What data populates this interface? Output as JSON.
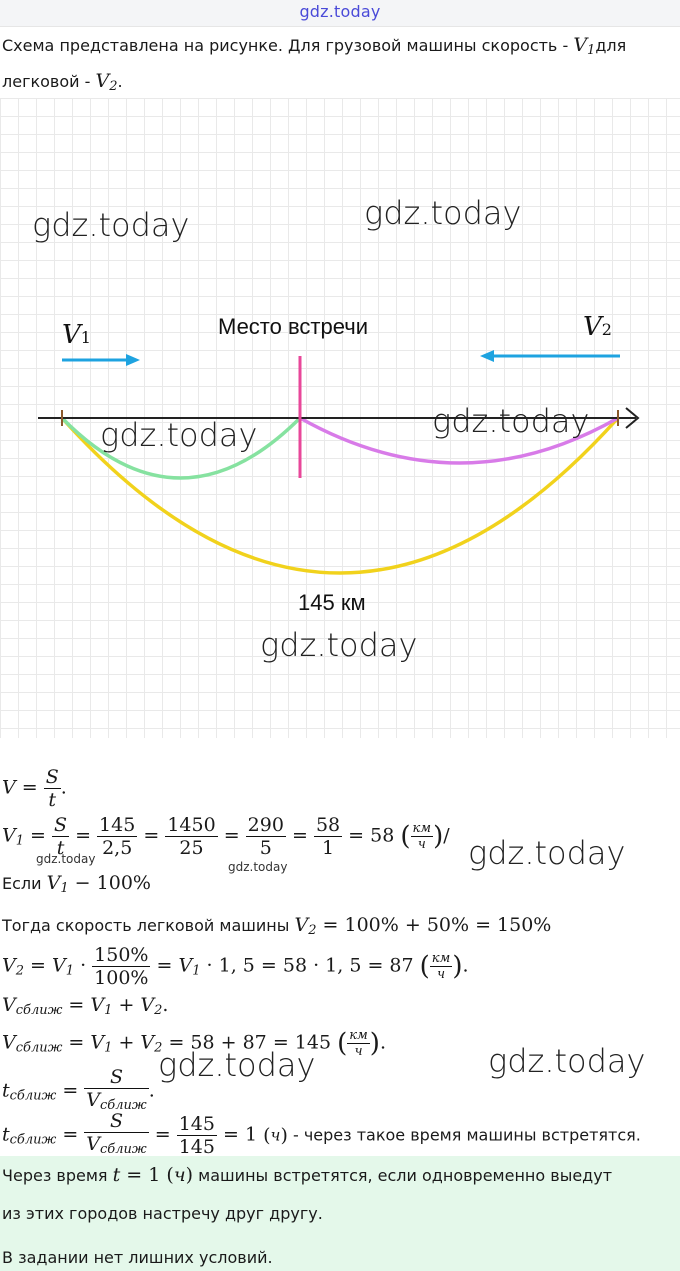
{
  "header": {
    "site": "gdz.today"
  },
  "intro": {
    "line1_a": "Схема представлена на рисунке. Для грузовой машины скорость - ",
    "v1": "V",
    "v1_sub": "1",
    "line1_b": "для",
    "line2_a": "легковой - ",
    "v2": "V",
    "v2_sub": "2",
    "line2_b": "."
  },
  "diagram": {
    "meeting_label": "Место встречи",
    "v1_label": "V",
    "v1_sub": "1",
    "v2_label": "V",
    "v2_sub": "2",
    "distance_label": "145 км",
    "colors": {
      "arrow": "#1ea3e0",
      "meet": "#e8479a",
      "green": "#86e2a0",
      "purple": "#d87be8",
      "yellow": "#f1d21c",
      "axis": "#222222",
      "tick": "#8b5a2b"
    }
  },
  "watermarks": {
    "big": "gdz.today",
    "small": "gdz.today"
  },
  "solution": {
    "l1": {
      "lhs": "V",
      "eq": " = ",
      "num": "S",
      "den": "t",
      "end": "."
    },
    "l2": {
      "lhs": "V",
      "sub": "1",
      "num1": "S",
      "den1": "t",
      "num2": "145",
      "den2": "2,5",
      "num3": "1450",
      "den3": "25",
      "num4": "290",
      "den4": "5",
      "num5": "58",
      "den5": "1",
      "result": "58",
      "unit_num": "км",
      "unit_den": "ч",
      "tail": "/"
    },
    "l3": {
      "text": "Если ",
      "v": "V",
      "sub": "1",
      "rest": " − 100%"
    },
    "l4": {
      "text": "Тогда скорость легковой машины ",
      "v": "V",
      "sub": "2",
      "rest": " = 100% + 50% = 150%"
    },
    "l5": {
      "lhs": "V",
      "sub": "2",
      "mid": " = V",
      "sub1": "1",
      "dot": " · ",
      "num": "150%",
      "den": "100%",
      "rest": " = V",
      "rest_sub": "1",
      "rest2": " · 1, 5 = 58 · 1, 5 = 87 ",
      "unit_num": "км",
      "unit_den": "ч",
      "end": "."
    },
    "l6": {
      "lhs": "V",
      "sub": "сближ",
      "rest": " = V",
      "s1": "1",
      "plus": " + V",
      "s2": "2",
      "end": "."
    },
    "l7": {
      "lhs": "V",
      "sub": "сближ",
      "rest": " = V",
      "s1": "1",
      "plus": " + V",
      "s2": "2",
      "tail": " = 58 + 87 = 145 ",
      "unit_num": "км",
      "unit_den": "ч",
      "end": "."
    },
    "l8": {
      "lhs": "t",
      "sub": "сближ",
      "eq": " = ",
      "num": "S",
      "den": "V",
      "den_sub": "сближ",
      "end": "."
    },
    "l9": {
      "lhs": "t",
      "sub": "сближ",
      "eq": " = ",
      "num": "S",
      "den": "V",
      "den_sub": "сближ",
      "num2": "145",
      "den2": "145",
      "result": " = 1 ",
      "unit": "ч",
      "tail": " - через такое время машины встретятся."
    }
  },
  "answer": {
    "a1_pre": "Через время ",
    "a1_t": "t",
    "a1_mid": " = 1 ",
    "a1_unit": "ч",
    "a1_post": " машины встретятся, если одновременно выедут",
    "a2": "из этих городов настречу друг другу.",
    "a3": "В задании нет лишних условий."
  }
}
